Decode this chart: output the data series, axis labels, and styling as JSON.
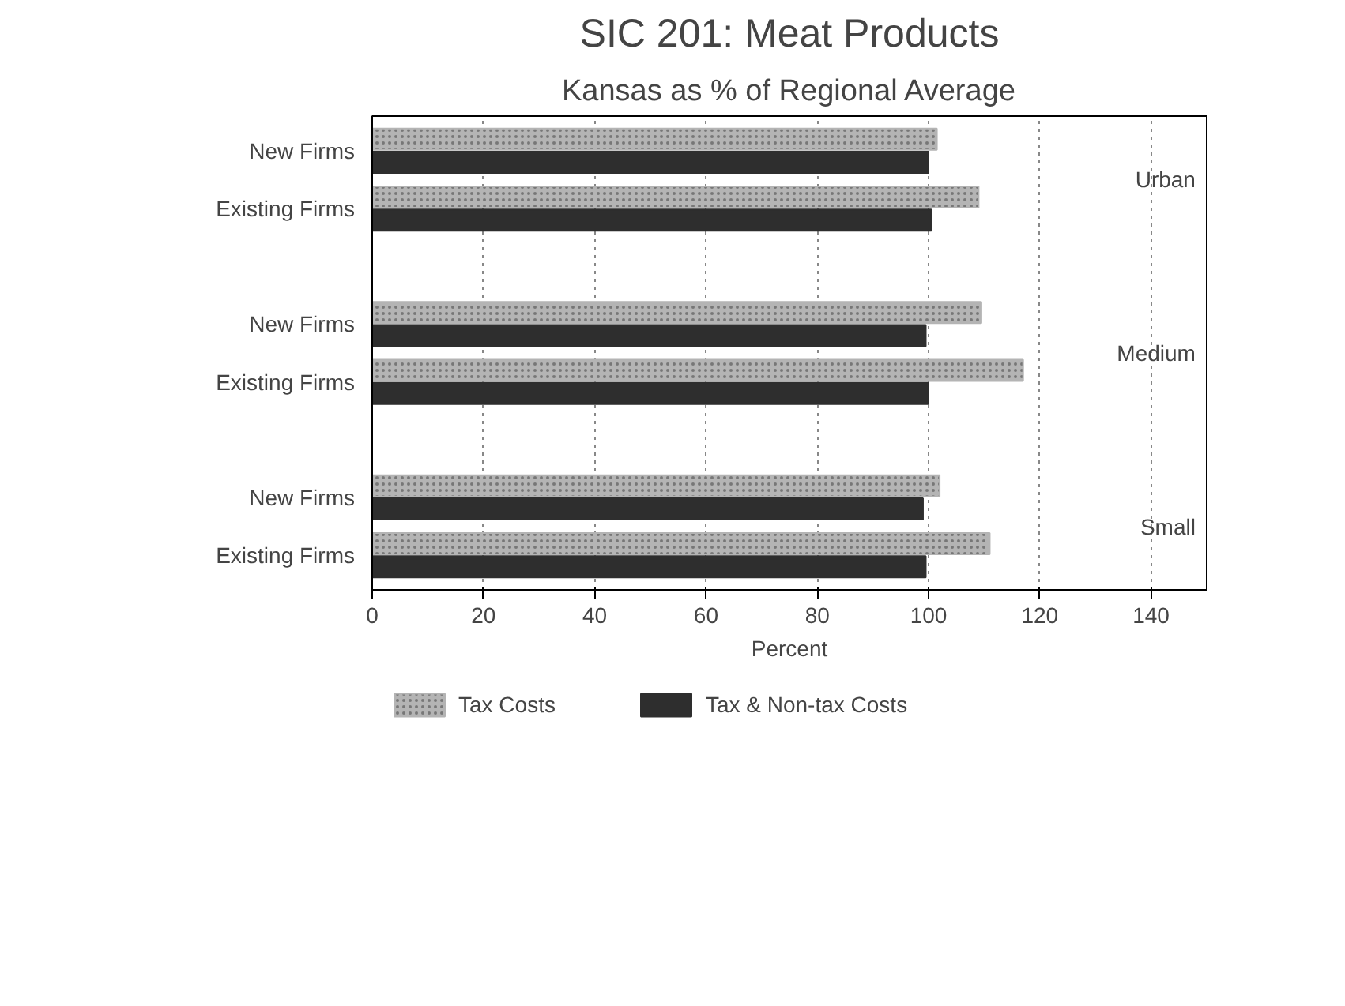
{
  "chart_data": {
    "type": "bar",
    "orientation": "horizontal",
    "title": "SIC 201: Meat Products",
    "subtitle": "Kansas as % of Regional Average",
    "xlabel": "Percent",
    "categories": [
      "New Firms",
      "Existing Firms",
      "New Firms",
      "Existing Firms",
      "New Firms",
      "Existing Firms"
    ],
    "series": [
      {
        "name": "Tax Costs",
        "color": "#b4b4b4",
        "values": [
          101.5,
          109,
          109.5,
          117,
          102,
          111
        ]
      },
      {
        "name": "Tax & Non-tax Costs",
        "color": "#2e2e2e",
        "values": [
          100,
          100.5,
          99.5,
          100,
          99,
          99.5
        ]
      }
    ],
    "annotations": [
      "Urban",
      "Medium",
      "Small"
    ],
    "xlim": [
      0,
      150
    ],
    "xticks": [
      0,
      20,
      40,
      60,
      80,
      100,
      120,
      140
    ],
    "grid": "x",
    "legend": "bottom"
  }
}
